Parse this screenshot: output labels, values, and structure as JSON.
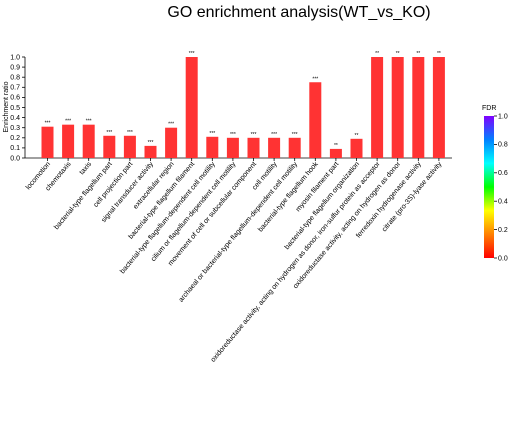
{
  "chart_data": {
    "type": "bar",
    "title": "GO enrichment analysis(WT_vs_KO)",
    "xlabel": "",
    "ylabel": "Enrichment ratio",
    "ylim": [
      0,
      1.0
    ],
    "yticks": [
      "0.0",
      "0.1",
      "0.2",
      "0.3",
      "0.4",
      "0.5",
      "0.6",
      "0.7",
      "0.8",
      "0.9",
      "1.0"
    ],
    "bar_color": "#ff3333",
    "categories": [
      "locomotion",
      "chemotaxis",
      "taxis",
      "bacterial-type flagellum part",
      "cell projection part",
      "signal transducer activity",
      "extracellular region",
      "bacterial-type flagellum filament",
      "bacterial-type flagellum-dependent cell motility",
      "cilium or flagellum-dependent cell motility",
      "movement of cell or subcellular component",
      "cell motility",
      "archaeal or bacterial-type flagellum-dependent cell motility",
      "bacterial-type flagellum hook",
      "myosin filament part",
      "bacterial-type flagellum organization",
      "oxidoreductase activity, acting on hydrogen as donor, iron-sulfur protein as acceptor",
      "oxidoreductase activity, acting on hydrogen as donor",
      "ferredoxin hydrogenase activity",
      "citrate (pro-3S)-lyase activity"
    ],
    "values": [
      0.31,
      0.33,
      0.33,
      0.22,
      0.22,
      0.12,
      0.3,
      1.0,
      0.21,
      0.2,
      0.2,
      0.2,
      0.2,
      0.75,
      0.09,
      0.19,
      1.0,
      1.0,
      1.0,
      1.0
    ],
    "significance": [
      "***",
      "***",
      "***",
      "***",
      "***",
      "***",
      "***",
      "***",
      "***",
      "***",
      "***",
      "***",
      "***",
      "***",
      "**",
      "**",
      "**",
      "**",
      "**",
      "**"
    ],
    "legend": {
      "title": "FDR",
      "ticks": [
        "0.0",
        "0.2",
        "0.4",
        "0.6",
        "0.8",
        "1.0"
      ],
      "colors": [
        "#ff0000",
        "#ff8000",
        "#ffff00",
        "#00ff00",
        "#00ffff",
        "#0080ff",
        "#8000ff"
      ],
      "placement": "right"
    }
  }
}
